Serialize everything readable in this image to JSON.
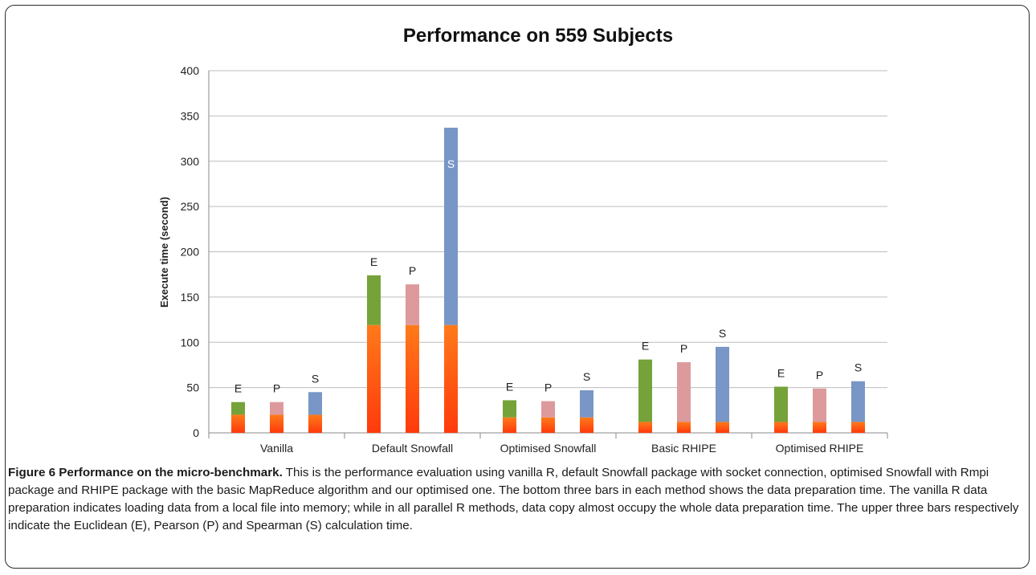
{
  "figure": {
    "caption_label": "Figure 6 Performance on the micro-benchmark.",
    "caption_text": " This is the performance evaluation using vanilla R, default Snowfall package with socket connection, optimised Snowfall with Rmpi package and RHIPE package with the basic MapReduce algorithm and our optimised one. The bottom three bars in each method shows the data preparation time. The vanilla R data preparation indicates loading data from a local file into memory; while in all parallel R methods, data copy almost occupy the whole data preparation time. The upper three bars respectively indicate the Euclidean (E), Pearson (P) and Spearman (S) calculation time."
  },
  "chart_data": {
    "type": "bar",
    "stacked": true,
    "title": "Performance on 559 Subjects",
    "xlabel": "",
    "ylabel": "Execute time (second)",
    "ylim": [
      0,
      400
    ],
    "yticks": [
      0,
      50,
      100,
      150,
      200,
      250,
      300,
      350,
      400
    ],
    "grid": true,
    "legend": "none",
    "categories": [
      "Vanilla",
      "Default Snowfall",
      "Optimised Snowfall",
      "Basic RHIPE",
      "Optimised RHIPE"
    ],
    "bar_labels": [
      "E",
      "P",
      "S"
    ],
    "colors": {
      "data_prep": "#ff3a0c",
      "data_prep_top": "#ff7a1a",
      "E": "#76a23a",
      "P": "#dc9a9c",
      "S": "#7896c6"
    },
    "data_preparation": [
      [
        20,
        20,
        20
      ],
      [
        119,
        119,
        119
      ],
      [
        17,
        17,
        17
      ],
      [
        12,
        12,
        12
      ],
      [
        12,
        12,
        12
      ]
    ],
    "totals": [
      [
        34,
        34,
        45
      ],
      [
        174,
        164,
        337
      ],
      [
        36,
        35,
        47
      ],
      [
        81,
        78,
        95
      ],
      [
        51,
        49,
        57
      ]
    ]
  }
}
